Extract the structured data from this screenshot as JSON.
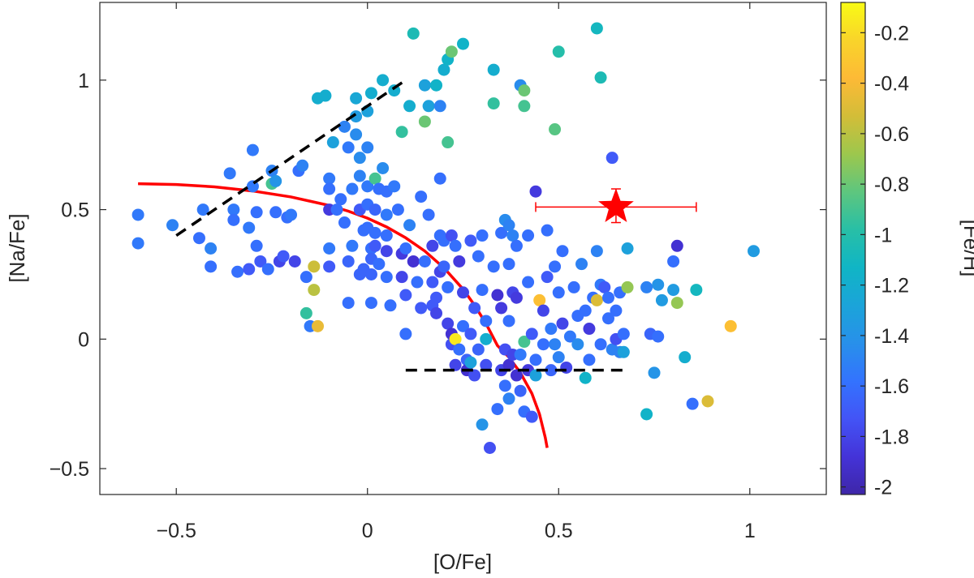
{
  "chart_data": {
    "type": "scatter",
    "title": "",
    "xlabel": "[O/Fe]",
    "ylabel": "[Na/Fe]",
    "xlim": [
      -0.7,
      1.2
    ],
    "ylim": [
      -0.6,
      1.3
    ],
    "xticks": [
      -0.5,
      0,
      0.5,
      1
    ],
    "xtick_labels": [
      "−0.5",
      "0",
      "0.5",
      "1"
    ],
    "yticks": [
      -0.5,
      0,
      0.5,
      1
    ],
    "ytick_labels": [
      "−0.5",
      "0",
      "0.5",
      "1"
    ],
    "colorbar": {
      "label": "[Fe/H]",
      "range": [
        -2.03,
        -0.08
      ],
      "ticks": [
        -0.2,
        -0.4,
        -0.6,
        -0.8,
        -1,
        -1.2,
        -1.4,
        -1.6,
        -1.8,
        -2
      ],
      "tick_labels": [
        "-0.2",
        "-0.4",
        "-0.6",
        "-0.8",
        "-1",
        "-1.2",
        "-1.4",
        "-1.6",
        "-1.8",
        "-2"
      ],
      "colormap": [
        "#3e26a8",
        "#4433d8",
        "#4354f6",
        "#3373fe",
        "#2890ea",
        "#1ba4d9",
        "#10b5c5",
        "#28bfa6",
        "#5ec67e",
        "#9dc74d",
        "#d3bd38",
        "#fdba36",
        "#f9d42a",
        "#f9fb15"
      ]
    },
    "points": [
      [
        -0.6,
        0.48,
        -1.55
      ],
      [
        -0.6,
        0.37,
        -1.55
      ],
      [
        -0.51,
        0.44,
        -1.5
      ],
      [
        -0.44,
        0.39,
        -1.6
      ],
      [
        -0.43,
        0.5,
        -1.55
      ],
      [
        -0.41,
        0.35,
        -1.5
      ],
      [
        -0.41,
        0.28,
        -1.6
      ],
      [
        -0.36,
        0.64,
        -1.55
      ],
      [
        -0.35,
        0.5,
        -1.55
      ],
      [
        -0.35,
        0.46,
        -1.6
      ],
      [
        -0.34,
        0.26,
        -1.6
      ],
      [
        -0.31,
        0.43,
        -1.55
      ],
      [
        -0.31,
        0.27,
        -1.7
      ],
      [
        -0.3,
        0.73,
        -1.55
      ],
      [
        -0.3,
        0.59,
        -1.55
      ],
      [
        -0.29,
        0.49,
        -1.6
      ],
      [
        -0.29,
        0.36,
        -1.6
      ],
      [
        -0.28,
        0.3,
        -1.7
      ],
      [
        -0.26,
        0.27,
        -1.6
      ],
      [
        -0.24,
        0.49,
        -1.6
      ],
      [
        -0.23,
        0.3,
        -1.8
      ],
      [
        -0.22,
        0.32,
        -1.7
      ],
      [
        -0.25,
        0.65,
        -1.5
      ],
      [
        -0.25,
        0.6,
        -0.9
      ],
      [
        -0.24,
        0.61,
        -1.4
      ],
      [
        -0.21,
        0.47,
        -1.6
      ],
      [
        -0.2,
        0.48,
        -1.55
      ],
      [
        -0.19,
        0.3,
        -1.8
      ],
      [
        -0.18,
        0.65,
        -1.6
      ],
      [
        -0.17,
        0.67,
        -1.5
      ],
      [
        -0.16,
        0.24,
        -1.6
      ],
      [
        -0.16,
        0.1,
        -0.95
      ],
      [
        -0.15,
        0.05,
        -1.55
      ],
      [
        -0.14,
        0.28,
        -0.55
      ],
      [
        -0.14,
        0.19,
        -0.6
      ],
      [
        -0.13,
        0.05,
        -0.45
      ],
      [
        -0.13,
        0.93,
        -1.2
      ],
      [
        -0.11,
        0.94,
        -1.2
      ],
      [
        -0.1,
        0.62,
        -1.55
      ],
      [
        -0.1,
        0.58,
        -1.6
      ],
      [
        -0.1,
        0.5,
        -1.85
      ],
      [
        -0.1,
        0.35,
        -1.55
      ],
      [
        -0.1,
        0.28,
        -1.7
      ],
      [
        -0.09,
        0.76,
        -1.3
      ],
      [
        -0.08,
        0.5,
        -1.6
      ],
      [
        -0.07,
        0.54,
        -1.6
      ],
      [
        -0.06,
        0.45,
        -1.6
      ],
      [
        -0.06,
        0.82,
        -1.5
      ],
      [
        -0.05,
        0.74,
        -1.55
      ],
      [
        -0.05,
        0.3,
        -1.65
      ],
      [
        -0.05,
        0.14,
        -1.6
      ],
      [
        -0.04,
        0.58,
        -1.55
      ],
      [
        -0.04,
        0.36,
        -1.55
      ],
      [
        -0.03,
        0.93,
        -1.25
      ],
      [
        -0.03,
        0.86,
        -1.35
      ],
      [
        -0.03,
        0.79,
        -1.45
      ],
      [
        -0.02,
        0.7,
        -1.45
      ],
      [
        -0.02,
        0.63,
        -1.5
      ],
      [
        -0.02,
        0.5,
        -1.7
      ],
      [
        -0.02,
        0.25,
        -1.65
      ],
      [
        -0.01,
        0.42,
        -1.6
      ],
      [
        -0.01,
        0.27,
        -1.65
      ],
      [
        0.0,
        0.88,
        -1.3
      ],
      [
        0.0,
        0.74,
        -1.5
      ],
      [
        0.0,
        0.59,
        -1.55
      ],
      [
        0.0,
        0.52,
        -1.6
      ],
      [
        0.0,
        0.43,
        -1.6
      ],
      [
        0.01,
        0.95,
        -1.2
      ],
      [
        0.01,
        0.35,
        -1.6
      ],
      [
        0.01,
        0.31,
        -1.65
      ],
      [
        0.01,
        0.25,
        -1.65
      ],
      [
        0.01,
        0.14,
        -1.6
      ],
      [
        0.02,
        0.62,
        -0.9
      ],
      [
        0.02,
        0.5,
        -1.65
      ],
      [
        0.02,
        0.41,
        -1.6
      ],
      [
        0.02,
        0.36,
        -1.7
      ],
      [
        0.03,
        0.58,
        -1.6
      ],
      [
        0.03,
        0.29,
        -1.6
      ],
      [
        0.04,
        1.0,
        -1.2
      ],
      [
        0.04,
        0.66,
        -1.45
      ],
      [
        0.05,
        0.57,
        -1.6
      ],
      [
        0.05,
        0.48,
        -1.55
      ],
      [
        0.05,
        0.4,
        -1.6
      ],
      [
        0.05,
        0.34,
        -1.8
      ],
      [
        0.05,
        0.24,
        -1.6
      ],
      [
        0.06,
        0.13,
        -1.6
      ],
      [
        0.07,
        0.96,
        -1.2
      ],
      [
        0.07,
        0.59,
        -1.55
      ],
      [
        0.08,
        0.5,
        -1.6
      ],
      [
        0.09,
        0.33,
        -1.85
      ],
      [
        0.09,
        0.24,
        -1.8
      ],
      [
        0.09,
        0.8,
        -0.95
      ],
      [
        0.1,
        0.35,
        -1.6
      ],
      [
        0.1,
        0.17,
        -1.7
      ],
      [
        0.1,
        0.02,
        -1.6
      ],
      [
        0.11,
        0.9,
        -1.2
      ],
      [
        0.11,
        0.44,
        -1.5
      ],
      [
        0.12,
        0.3,
        -1.9
      ],
      [
        0.12,
        1.18,
        -1.05
      ],
      [
        0.13,
        0.22,
        -1.6
      ],
      [
        0.14,
        0.12,
        -1.7
      ],
      [
        0.14,
        0.55,
        -1.6
      ],
      [
        0.15,
        0.98,
        -1.3
      ],
      [
        0.15,
        0.84,
        -0.8
      ],
      [
        0.15,
        0.3,
        -1.6
      ],
      [
        0.16,
        0.9,
        -1.3
      ],
      [
        0.16,
        0.48,
        -1.6
      ],
      [
        0.17,
        0.36,
        -1.8
      ],
      [
        0.17,
        0.22,
        -1.7
      ],
      [
        0.17,
        0.13,
        -1.7
      ],
      [
        0.18,
        0.1,
        -1.8
      ],
      [
        0.18,
        0.98,
        -1.15
      ],
      [
        0.18,
        0.16,
        -1.7
      ],
      [
        0.19,
        0.9,
        -1.5
      ],
      [
        0.19,
        0.4,
        -1.6
      ],
      [
        0.19,
        0.26,
        -1.8
      ],
      [
        0.19,
        0.62,
        -1.6
      ],
      [
        0.2,
        1.04,
        -1.2
      ],
      [
        0.2,
        0.38,
        -1.6
      ],
      [
        0.2,
        0.28,
        -1.65
      ],
      [
        0.21,
        1.08,
        -1.15
      ],
      [
        0.21,
        0.76,
        -0.9
      ],
      [
        0.21,
        0.2,
        -1.6
      ],
      [
        0.21,
        0.06,
        -1.8
      ],
      [
        0.22,
        1.11,
        -0.8
      ],
      [
        0.22,
        0.4,
        -1.75
      ],
      [
        0.22,
        0.02,
        -1.9
      ],
      [
        0.22,
        -0.02,
        -1.75
      ],
      [
        0.23,
        0.36,
        -1.6
      ],
      [
        0.23,
        0.0,
        -0.15
      ],
      [
        0.23,
        -0.1,
        -1.8
      ],
      [
        0.24,
        0.3,
        -1.85
      ],
      [
        0.24,
        -0.04,
        -1.6
      ],
      [
        0.25,
        1.14,
        -1.15
      ],
      [
        0.25,
        0.18,
        -1.8
      ],
      [
        0.25,
        0.05,
        -1.6
      ],
      [
        0.26,
        -0.08,
        -1.65
      ],
      [
        0.26,
        -0.12,
        -1.9
      ],
      [
        0.27,
        0.38,
        -1.7
      ],
      [
        0.27,
        0.02,
        -1.7
      ],
      [
        0.27,
        -0.09,
        -1.3
      ],
      [
        0.28,
        0.12,
        -1.7
      ],
      [
        0.28,
        -0.14,
        -1.75
      ],
      [
        0.29,
        0.32,
        -1.6
      ],
      [
        0.29,
        -0.04,
        -1.65
      ],
      [
        0.3,
        0.4,
        -1.6
      ],
      [
        0.3,
        0.19,
        -1.6
      ],
      [
        0.3,
        -0.33,
        -1.4
      ],
      [
        0.31,
        0.0,
        -1.2
      ],
      [
        0.31,
        0.07,
        -1.6
      ],
      [
        0.31,
        -0.1,
        -1.75
      ],
      [
        0.32,
        -0.42,
        -1.75
      ],
      [
        0.33,
        1.04,
        -1.2
      ],
      [
        0.33,
        0.91,
        -0.95
      ],
      [
        0.33,
        0.28,
        -1.6
      ],
      [
        0.34,
        0.17,
        -1.9
      ],
      [
        0.34,
        -0.27,
        -1.6
      ],
      [
        0.35,
        0.41,
        -1.6
      ],
      [
        0.35,
        -0.12,
        -1.8
      ],
      [
        0.35,
        0.12,
        -1.85
      ],
      [
        0.36,
        0.46,
        -1.45
      ],
      [
        0.36,
        -0.04,
        -1.75
      ],
      [
        0.36,
        -0.18,
        -1.6
      ],
      [
        0.37,
        0.44,
        -1.5
      ],
      [
        0.37,
        0.29,
        -1.6
      ],
      [
        0.37,
        0.07,
        -1.6
      ],
      [
        0.37,
        -0.1,
        -1.9
      ],
      [
        0.37,
        -0.23,
        -1.5
      ],
      [
        0.38,
        0.4,
        -1.5
      ],
      [
        0.38,
        0.18,
        -1.8
      ],
      [
        0.38,
        -0.06,
        -1.8
      ],
      [
        0.39,
        0.36,
        -1.6
      ],
      [
        0.39,
        0.16,
        -1.85
      ],
      [
        0.39,
        -0.14,
        -1.9
      ],
      [
        0.4,
        0.98,
        -1.45
      ],
      [
        0.4,
        -0.06,
        -1.55
      ],
      [
        0.4,
        -0.2,
        -1.65
      ],
      [
        0.41,
        0.96,
        -0.8
      ],
      [
        0.41,
        0.9,
        -0.9
      ],
      [
        0.41,
        -0.28,
        -1.6
      ],
      [
        0.41,
        -0.01,
        -0.9
      ],
      [
        0.42,
        0.4,
        -1.6
      ],
      [
        0.42,
        0.22,
        -1.6
      ],
      [
        0.42,
        -0.12,
        -1.85
      ],
      [
        0.43,
        -0.3,
        -1.7
      ],
      [
        0.43,
        0.02,
        -1.7
      ],
      [
        0.44,
        0.57,
        -1.85
      ],
      [
        0.44,
        -0.08,
        -1.6
      ],
      [
        0.44,
        -0.14,
        -1.3
      ],
      [
        0.45,
        0.15,
        -0.35
      ],
      [
        0.46,
        0.11,
        -1.8
      ],
      [
        0.46,
        -0.02,
        -1.6
      ],
      [
        0.47,
        0.24,
        -1.7
      ],
      [
        0.47,
        0.42,
        -1.6
      ],
      [
        0.48,
        0.04,
        -1.55
      ],
      [
        0.48,
        -0.12,
        -1.65
      ],
      [
        0.49,
        0.81,
        -0.85
      ],
      [
        0.49,
        0.28,
        -1.6
      ],
      [
        0.49,
        -0.02,
        -1.5
      ],
      [
        0.5,
        1.11,
        -1.0
      ],
      [
        0.5,
        0.18,
        -1.6
      ],
      [
        0.5,
        -0.07,
        -1.5
      ],
      [
        0.51,
        0.34,
        -1.6
      ],
      [
        0.51,
        0.06,
        -1.8
      ],
      [
        0.52,
        -0.11,
        -1.8
      ],
      [
        0.53,
        0.01,
        -1.55
      ],
      [
        0.54,
        0.2,
        -1.6
      ],
      [
        0.55,
        0.09,
        -1.6
      ],
      [
        0.55,
        -0.02,
        -1.45
      ],
      [
        0.56,
        0.29,
        -1.5
      ],
      [
        0.57,
        0.11,
        -1.6
      ],
      [
        0.57,
        -0.15,
        -1.15
      ],
      [
        0.58,
        0.04,
        -1.85
      ],
      [
        0.58,
        -0.08,
        -1.6
      ],
      [
        0.59,
        0.16,
        -1.6
      ],
      [
        0.6,
        1.2,
        -1.1
      ],
      [
        0.6,
        0.15,
        -0.5
      ],
      [
        0.6,
        0.34,
        -1.5
      ],
      [
        0.61,
        1.01,
        -1.05
      ],
      [
        0.61,
        0.21,
        -1.55
      ],
      [
        0.61,
        -0.02,
        -1.6
      ],
      [
        0.62,
        0.2,
        -1.7
      ],
      [
        0.63,
        0.08,
        -1.6
      ],
      [
        0.63,
        0.16,
        -1.6
      ],
      [
        0.64,
        0.7,
        -1.7
      ],
      [
        0.64,
        -0.04,
        -1.5
      ],
      [
        0.65,
        0.0,
        -1.75
      ],
      [
        0.65,
        0.11,
        -1.6
      ],
      [
        0.66,
        0.18,
        -1.6
      ],
      [
        0.66,
        -0.05,
        -1.5
      ],
      [
        0.67,
        0.02,
        -1.6
      ],
      [
        0.67,
        -0.05,
        -1.3
      ],
      [
        0.68,
        0.2,
        -0.7
      ],
      [
        0.68,
        0.35,
        -1.3
      ],
      [
        0.73,
        0.2,
        -1.5
      ],
      [
        0.73,
        -0.29,
        -1.15
      ],
      [
        0.74,
        0.02,
        -1.65
      ],
      [
        0.75,
        -0.13,
        -1.4
      ],
      [
        0.76,
        0.21,
        -1.4
      ],
      [
        0.76,
        0.01,
        -1.6
      ],
      [
        0.77,
        0.15,
        -1.35
      ],
      [
        0.8,
        0.3,
        -1.6
      ],
      [
        0.8,
        0.19,
        -1.35
      ],
      [
        0.81,
        0.36,
        -1.9
      ],
      [
        0.81,
        0.14,
        -0.7
      ],
      [
        0.83,
        -0.07,
        -1.2
      ],
      [
        0.85,
        -0.25,
        -1.6
      ],
      [
        0.86,
        0.19,
        -1.1
      ],
      [
        0.89,
        -0.24,
        -0.5
      ],
      [
        0.95,
        0.05,
        -0.35
      ],
      [
        1.01,
        0.34,
        -1.35
      ]
    ],
    "red_curve": [
      [
        -0.6,
        0.6
      ],
      [
        -0.5,
        0.597
      ],
      [
        -0.4,
        0.588
      ],
      [
        -0.3,
        0.572
      ],
      [
        -0.2,
        0.549
      ],
      [
        -0.1,
        0.516
      ],
      [
        -0.05,
        0.494
      ],
      [
        0.0,
        0.467
      ],
      [
        0.05,
        0.433
      ],
      [
        0.1,
        0.391
      ],
      [
        0.15,
        0.34
      ],
      [
        0.2,
        0.275
      ],
      [
        0.25,
        0.193
      ],
      [
        0.28,
        0.131
      ],
      [
        0.31,
        0.06
      ],
      [
        0.34,
        -0.025
      ],
      [
        0.37,
        -0.07
      ],
      [
        0.4,
        -0.13
      ],
      [
        0.43,
        -0.21
      ],
      [
        0.45,
        -0.29
      ],
      [
        0.465,
        -0.38
      ],
      [
        0.47,
        -0.42
      ]
    ],
    "dashed_lines": [
      {
        "name": "upper-dashed-line",
        "points": [
          [
            -0.5,
            0.4
          ],
          [
            0.1,
            1.0
          ]
        ]
      },
      {
        "name": "lower-dashed-line",
        "points": [
          [
            0.1,
            -0.12
          ],
          [
            0.68,
            -0.12
          ]
        ]
      }
    ],
    "star_marker": {
      "x": 0.65,
      "y": 0.51,
      "x_err": [
        0.44,
        0.86
      ],
      "y_err": [
        0.45,
        0.58
      ],
      "color": "#ff0000"
    },
    "colors": {
      "curve": "#ff0000",
      "dashed": "#000000",
      "axis": "#262626"
    }
  }
}
